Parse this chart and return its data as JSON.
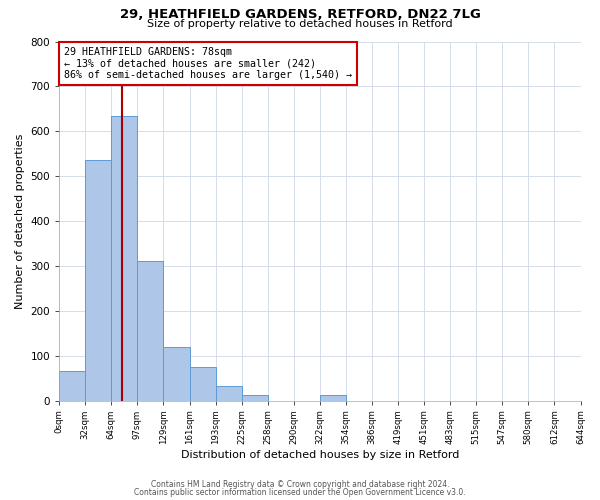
{
  "title": "29, HEATHFIELD GARDENS, RETFORD, DN22 7LG",
  "subtitle": "Size of property relative to detached houses in Retford",
  "xlabel": "Distribution of detached houses by size in Retford",
  "ylabel": "Number of detached properties",
  "bin_labels": [
    "0sqm",
    "32sqm",
    "64sqm",
    "97sqm",
    "129sqm",
    "161sqm",
    "193sqm",
    "225sqm",
    "258sqm",
    "290sqm",
    "322sqm",
    "354sqm",
    "386sqm",
    "419sqm",
    "451sqm",
    "483sqm",
    "515sqm",
    "547sqm",
    "580sqm",
    "612sqm",
    "644sqm"
  ],
  "bar_heights": [
    65,
    535,
    635,
    310,
    120,
    75,
    32,
    12,
    0,
    0,
    12,
    0,
    0,
    0,
    0,
    0,
    0,
    0,
    0,
    0
  ],
  "bar_color": "#aec6e8",
  "bar_edge_color": "#5b9bd5",
  "grid_color": "#d0d8e8",
  "property_line_bin": 2.4,
  "property_line_color": "#aa0000",
  "annotation_text": "29 HEATHFIELD GARDENS: 78sqm\n← 13% of detached houses are smaller (242)\n86% of semi-detached houses are larger (1,540) →",
  "annotation_box_color": "#cc0000",
  "ylim": [
    0,
    800
  ],
  "yticks": [
    0,
    100,
    200,
    300,
    400,
    500,
    600,
    700,
    800
  ],
  "footer1": "Contains HM Land Registry data © Crown copyright and database right 2024.",
  "footer2": "Contains public sector information licensed under the Open Government Licence v3.0.",
  "bg_color": "#ffffff",
  "fig_width": 6.0,
  "fig_height": 5.0,
  "fig_dpi": 100
}
